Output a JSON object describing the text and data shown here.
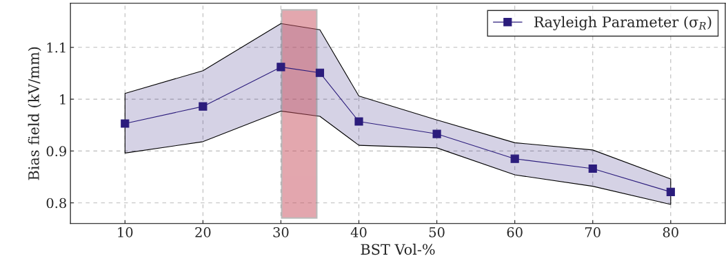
{
  "chart_data": {
    "type": "line",
    "xlabel": "BST Vol-%",
    "ylabel": "Bias field (kV/mm)",
    "x": [
      10,
      20,
      30,
      35,
      40,
      50,
      60,
      70,
      80
    ],
    "series": [
      {
        "name": "Rayleigh Parameter (σ$_{R}$)",
        "color": "#2b1c7c",
        "values": [
          0.953,
          0.986,
          1.062,
          1.051,
          0.957,
          0.933,
          0.885,
          0.866,
          0.821
        ],
        "lower": [
          0.896,
          0.918,
          0.977,
          0.967,
          0.911,
          0.906,
          0.854,
          0.832,
          0.797
        ],
        "upper": [
          1.011,
          1.055,
          1.146,
          1.134,
          1.006,
          0.96,
          0.916,
          0.902,
          0.846
        ]
      }
    ],
    "bands": [
      {
        "axis": "x",
        "from": 30.1,
        "to": 34.6,
        "color": "#c8505f"
      }
    ],
    "xlim": [
      3,
      87
    ],
    "xticks": [
      10,
      20,
      30,
      40,
      50,
      60,
      70,
      80
    ],
    "ylim": [
      0.76,
      1.185
    ],
    "yticks": [
      0.8,
      0.9,
      1,
      1.1
    ],
    "grid": true,
    "legend": "top right",
    "marker": "square",
    "line_style": "solid"
  }
}
